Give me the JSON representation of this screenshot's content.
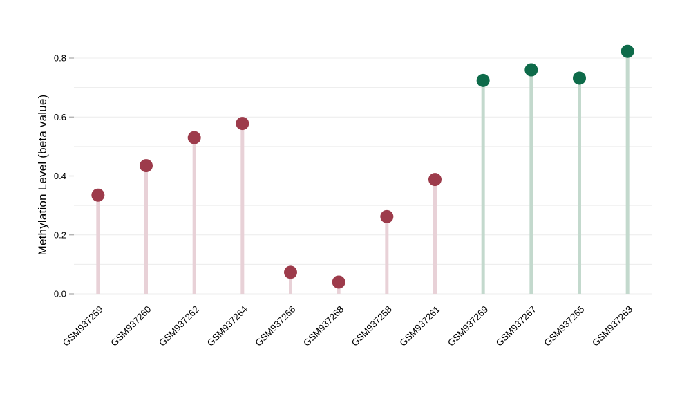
{
  "chart_data": {
    "type": "scatter",
    "variant": "lollipop-stem",
    "title": "",
    "xlabel": "",
    "ylabel": "Methylation Level (beta value)",
    "ylim": [
      0,
      0.85
    ],
    "yticks": [
      0,
      0.2,
      0.4,
      0.6,
      0.8
    ],
    "grid": true,
    "grid_step": 0.1,
    "legend_position": "none",
    "categories": [
      "GSM937259",
      "GSM937260",
      "GSM937262",
      "GSM937264",
      "GSM937266",
      "GSM937268",
      "GSM937258",
      "GSM937261",
      "GSM937269",
      "GSM937267",
      "GSM937265",
      "GSM937263"
    ],
    "values": [
      0.335,
      0.435,
      0.53,
      0.578,
      0.073,
      0.04,
      0.262,
      0.388,
      0.724,
      0.76,
      0.732,
      0.823
    ],
    "point_groups": [
      "low",
      "low",
      "low",
      "low",
      "low",
      "low",
      "low",
      "low",
      "high",
      "high",
      "high",
      "high"
    ],
    "groups": {
      "low": {
        "marker_color": "#9d3b4b",
        "stem_color": "#e8d1d7"
      },
      "high": {
        "marker_color": "#0e6b4a",
        "stem_color": "#c3d9cd"
      }
    },
    "grid_color": "#ececec",
    "tick_mark_color": "#a6a6a6",
    "text_color": "#000000",
    "background_color": "#ffffff"
  }
}
